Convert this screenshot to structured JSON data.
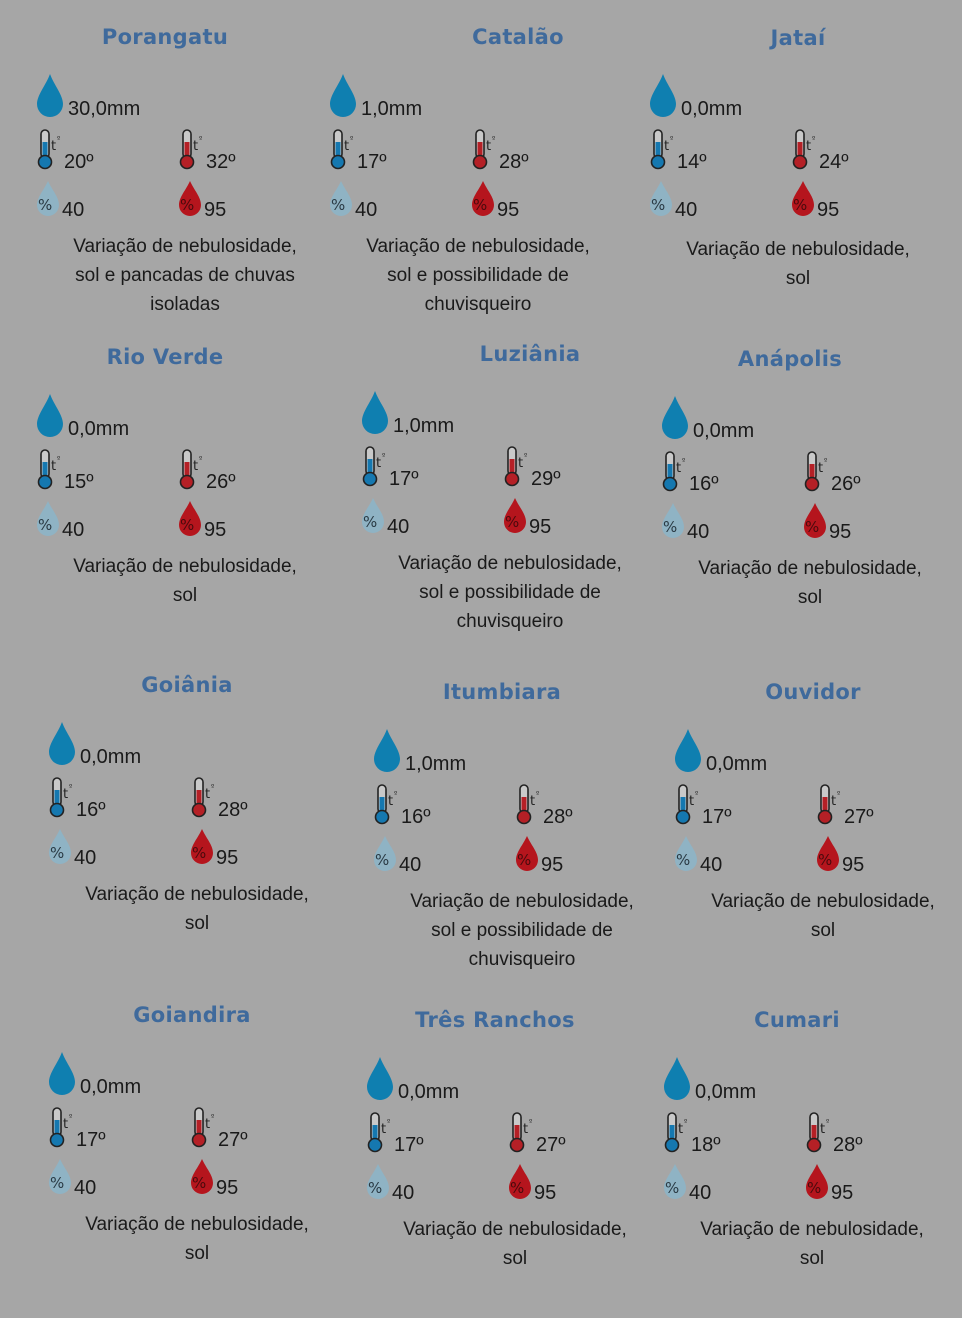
{
  "colors": {
    "background": "#a6a6a6",
    "city_title": "#3f6a9c",
    "rain_drop": "#0f7fb0",
    "thermometer_min": "#1578b0",
    "thermometer_max": "#b52026",
    "humidity_min_drop": "#8fb3c4",
    "humidity_max_drop": "#b5151d"
  },
  "icons": {
    "rain": "rain-drop-icon",
    "temp_min": "thermometer-cold-icon",
    "temp_max": "thermometer-hot-icon",
    "humidity_min": "humidity-low-drop-icon",
    "humidity_max": "humidity-high-drop-icon",
    "thermometer_label": "tº"
  },
  "cities": [
    {
      "name": "Porangatu",
      "rain": "30,0mm",
      "temp_min": "20º",
      "temp_max": "32º",
      "hum_min": "40",
      "hum_max": "95",
      "desc": [
        "Variação de nebulosidade,",
        "sol e pancadas de chuvas",
        "isoladas"
      ]
    },
    {
      "name": "Catalão",
      "rain": "1,0mm",
      "temp_min": "17º",
      "temp_max": "28º",
      "hum_min": "40",
      "hum_max": "95",
      "desc": [
        "Variação de nebulosidade,",
        "sol e possibilidade de",
        "chuvisqueiro"
      ]
    },
    {
      "name": "Jataí",
      "rain": "0,0mm",
      "temp_min": "14º",
      "temp_max": "24º",
      "hum_min": "40",
      "hum_max": "95",
      "desc": [
        "Variação de nebulosidade,",
        "sol",
        ""
      ]
    },
    {
      "name": "Rio Verde",
      "rain": "0,0mm",
      "temp_min": "15º",
      "temp_max": "26º",
      "hum_min": "40",
      "hum_max": "95",
      "desc": [
        "Variação de nebulosidade,",
        "sol",
        ""
      ]
    },
    {
      "name": "Luziânia",
      "rain": "1,0mm",
      "temp_min": "17º",
      "temp_max": "29º",
      "hum_min": "40",
      "hum_max": "95",
      "desc": [
        "Variação de nebulosidade,",
        "sol e possibilidade de",
        "chuvisqueiro"
      ]
    },
    {
      "name": "Anápolis",
      "rain": "0,0mm",
      "temp_min": "16º",
      "temp_max": "26º",
      "hum_min": "40",
      "hum_max": "95",
      "desc": [
        "Variação de nebulosidade,",
        "sol",
        ""
      ]
    },
    {
      "name": "Goiânia",
      "rain": "0,0mm",
      "temp_min": "16º",
      "temp_max": "28º",
      "hum_min": "40",
      "hum_max": "95",
      "desc": [
        "Variação de nebulosidade,",
        "sol",
        ""
      ]
    },
    {
      "name": "Itumbiara",
      "rain": "1,0mm",
      "temp_min": "16º",
      "temp_max": "28º",
      "hum_min": "40",
      "hum_max": "95",
      "desc": [
        "Variação de nebulosidade,",
        "sol e possibilidade de",
        "chuvisqueiro"
      ]
    },
    {
      "name": "Ouvidor",
      "rain": "0,0mm",
      "temp_min": "17º",
      "temp_max": "27º",
      "hum_min": "40",
      "hum_max": "95",
      "desc": [
        "Variação de nebulosidade,",
        "sol",
        ""
      ]
    },
    {
      "name": "Goiandira",
      "rain": "0,0mm",
      "temp_min": "17º",
      "temp_max": "27º",
      "hum_min": "40",
      "hum_max": "95",
      "desc": [
        "Variação de nebulosidade,",
        "sol",
        ""
      ]
    },
    {
      "name": "Três Ranchos",
      "rain": "0,0mm",
      "temp_min": "17º",
      "temp_max": "27º",
      "hum_min": "40",
      "hum_max": "95",
      "desc": [
        "Variação de nebulosidade,",
        "sol",
        ""
      ]
    },
    {
      "name": "Cumari",
      "rain": "0,0mm",
      "temp_min": "18º",
      "temp_max": "28º",
      "hum_min": "40",
      "hum_max": "95",
      "desc": [
        "Variação de nebulosidade,",
        "sol",
        ""
      ]
    }
  ]
}
